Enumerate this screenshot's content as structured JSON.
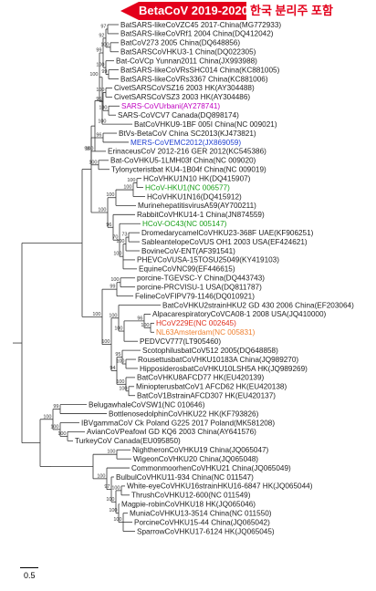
{
  "banner": {
    "label": "BetaCoV 2019-2020",
    "note": "한국 분리주 포함",
    "color": "#e3001b"
  },
  "scale_bar": {
    "label": "0.5"
  },
  "taxa": [
    {
      "label": "BatSARS-likeCoVZC45 2017-China(MG772933)"
    },
    {
      "label": "BatSARS-likeCoVRf1 2004 China(DQ412042)"
    },
    {
      "label": "BatCoV273 2005 China(DQ648856)"
    },
    {
      "label": "BatSARSCoVHKU3-1 China(DQ022305)"
    },
    {
      "label": "Bat-CoVCp Yunnan2011 China(JX993988)"
    },
    {
      "label": "BatSARS-likeCoVRsSHC014 China(KC881005)"
    },
    {
      "label": "BatSARS-likeCoVRs3367 China(KC881006)"
    },
    {
      "label": "CivetSARSCoVSZ16 2003 HK(AY304488)"
    },
    {
      "label": "CivetSARSCoVSZ3 2003 HK(AY304486)"
    },
    {
      "label": "SARS-CoVUrbani(AY278741)",
      "color": "#c000c0"
    },
    {
      "label": "SARS-CoVCV7 Canada(DQ898174)"
    },
    {
      "label": "BatCoVHKU9-1BF 005I China(NC 009021)"
    },
    {
      "label": "BtVs-BetaCoV China SC2013(KJ473821)"
    },
    {
      "label": "MERS-CoVEMC2012(JX869059)",
      "color": "#1f3fd0"
    },
    {
      "label": "ErinaceusCoV 2012-216 GER 2012(KC545386)"
    },
    {
      "label": "Bat-CoVHKU5-1LMH03f China(NC 009020)"
    },
    {
      "label": "Tylonycteristbat KU4-1B04f China(NC 009019)"
    },
    {
      "label": "HCoVHKU1N10 HK(DQ415907)"
    },
    {
      "label": "HCoV-HKU1(NC 006577)",
      "color": "#1aa01a"
    },
    {
      "label": "HCoVHKU1N16(DQ415912)"
    },
    {
      "label": "MurinehepatitisvirusA59(AY700211)"
    },
    {
      "label": "RabbitCoVHKU14-1 China(JN874559)"
    },
    {
      "label": "HCoV-OC43(NC 005147)",
      "color": "#1aa01a"
    },
    {
      "label": "DromedarycamelCoVHKU23-368F UAE(KF906251)"
    },
    {
      "label": "SableantelopeCoVUS OH1 2003 USA(EF424621)"
    },
    {
      "label": "BovineCoV-ENT(AF391541)"
    },
    {
      "label": "PHEVCoVUSA-15TOSU25049(KY419103)"
    },
    {
      "label": "EquineCoVNC99(EF446615)"
    },
    {
      "label": "porcine-TGEVSC-Y China(DQ443743)"
    },
    {
      "label": "porcine-PRCVISU-1 USA(DQ811787)"
    },
    {
      "label": "FelineCoVFIPV79-1146(DQ010921)"
    },
    {
      "label": "BatCoVHKU2strainHKU2 GD 430 2006 China(EF203064)"
    },
    {
      "label": "AlpacarespiratoryCoVCA08-1 2008 USA(JQ410000)"
    },
    {
      "label": "HCoV229E(NC 002645)",
      "color": "#e0301e"
    },
    {
      "label": "NL63Amsterdam(NC 005831)",
      "color": "#f08030"
    },
    {
      "label": "PEDVCV777(LT905460)"
    },
    {
      "label": "ScotophilusbatCoV512 2005(DQ648858)"
    },
    {
      "label": "RousettusbatCoVHKU10183A China(JQ989270)"
    },
    {
      "label": "HipposiderosbatCoVHKU10LSH5A HK(JQ989269)"
    },
    {
      "label": "BatCoVHKU8AFCD77 HK(EU420139)"
    },
    {
      "label": "MiniopterusbatCoV1 AFCD62 HK(EU420138)"
    },
    {
      "label": "BatCoV1BstrainAFCD307 HK(EU420137)"
    },
    {
      "label": "BelugawhaleCoVSW1(NC 010646)"
    },
    {
      "label": "BottlenosedolphinCoVHKU22 HK(KF793826)"
    },
    {
      "label": "IBVgammaCoV Ck Poland G225 2017 Poland(MK581208)"
    },
    {
      "label": "AvianCoVPeafowl GD KQ6 2003 China(AY641576)"
    },
    {
      "label": "TurkeyCoV Canada(EU095850)"
    },
    {
      "label": "NightheronCoVHKU19 China(JQ065047)"
    },
    {
      "label": "WigeonCoVHKU20 China(JQ065048)"
    },
    {
      "label": "CommonmoorhenCoVHKU21 China(JQ065049)"
    },
    {
      "label": "BulbulCoVHKU11-934 China(NC 011547)"
    },
    {
      "label": "White-eyeCoVHKU16strainHKU16-6847 HK(JQ065044)"
    },
    {
      "label": "ThrushCoVHKU12-600(NC 011549)"
    },
    {
      "label": "Magpie-robinCoVHKU18 HK(JQ065046)"
    },
    {
      "label": "MuniaCoVHKU13-3514 China(NC 011550)"
    },
    {
      "label": "PorcineCoVHKU15-44 China(JQ065042)"
    },
    {
      "label": "SparrowCoVHKU17-6124 HK(JQ065045)"
    }
  ],
  "bootstrap": {
    "n1": "97",
    "n2": "100",
    "n3": "92",
    "n4": "99",
    "n5": "100",
    "n6": "99",
    "n7": "100",
    "n8": "100",
    "n9": "96",
    "n10": "100",
    "n11": "100",
    "n12": "96",
    "n13": "100",
    "n14": "100",
    "n15": "98",
    "n16": "100",
    "n17": "100",
    "n18": "100",
    "n19": "73",
    "n20": "100",
    "n21": "100",
    "n22": "70",
    "n23": "96",
    "n24": "100",
    "n25": "100",
    "n26": "99",
    "n27": "100",
    "n28": "96",
    "n29": "100",
    "n30": "100",
    "n31": "100",
    "n32": "95",
    "n33": "100",
    "n34": "100",
    "n35": "94",
    "n36": "100",
    "n37": "100",
    "n38": "99",
    "n39": "100",
    "n40": "100",
    "n41": "100",
    "n42": "100",
    "n43": "100",
    "n44": "100",
    "n45": "100",
    "n46": "100",
    "n47": "97",
    "n48": "100"
  }
}
